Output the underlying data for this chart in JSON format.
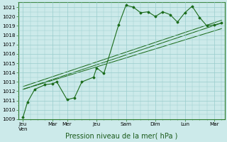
{
  "xlabel": "Pression niveau de la mer( hPa )",
  "bg_color": "#cceaea",
  "grid_color": "#99cccc",
  "line_color": "#1a6b1a",
  "ylim": [
    1009,
    1021.5
  ],
  "yticks": [
    1009,
    1010,
    1011,
    1012,
    1013,
    1014,
    1015,
    1016,
    1017,
    1018,
    1019,
    1020,
    1021
  ],
  "xtick_labels": [
    "Jeu\nVen",
    "Mar",
    "Mer",
    "Jeu",
    "Sam",
    "Dim",
    "Lun",
    "Mar"
  ],
  "xtick_pos": [
    0,
    2,
    3,
    5,
    7,
    9,
    11,
    13
  ],
  "xlim": [
    -0.3,
    13.7
  ],
  "series1_x": [
    0,
    0.3,
    0.8,
    1.5,
    2.0,
    2.3,
    3.0,
    3.5,
    4.0,
    4.8,
    5.0,
    5.5,
    6.5,
    7.0,
    7.5,
    8.0,
    8.5,
    9.0,
    9.5,
    10.0,
    10.5,
    11.0,
    11.5,
    12.0,
    12.5,
    13.0,
    13.5
  ],
  "series1_y": [
    1009.2,
    1010.8,
    1012.2,
    1012.7,
    1012.8,
    1013.0,
    1011.1,
    1011.3,
    1013.0,
    1013.5,
    1014.5,
    1013.9,
    1019.1,
    1021.2,
    1021.0,
    1020.4,
    1020.5,
    1020.0,
    1020.5,
    1020.2,
    1019.4,
    1020.4,
    1021.1,
    1019.9,
    1019.0,
    1019.1,
    1019.3
  ],
  "series2_x": [
    0,
    13.5
  ],
  "series2_y": [
    1012.2,
    1019.3
  ],
  "series3_x": [
    0,
    13.5
  ],
  "series3_y": [
    1012.2,
    1018.7
  ],
  "series4_x": [
    0,
    13.5
  ],
  "series4_y": [
    1012.5,
    1019.6
  ],
  "xlabel_fontsize": 7.0,
  "tick_fontsize": 5.2
}
